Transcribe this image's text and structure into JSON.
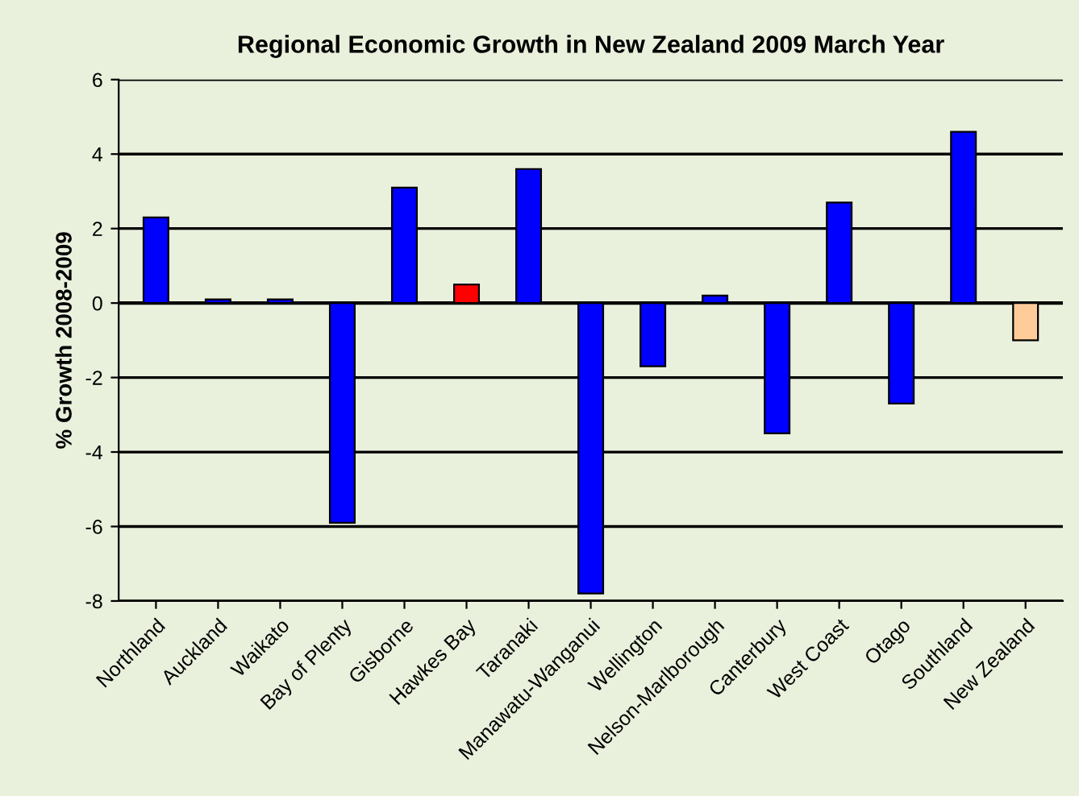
{
  "chart_data": {
    "type": "bar",
    "title": "Regional Economic Growth in New Zealand 2009 March Year",
    "ylabel": "% Growth 2008-2009",
    "categories": [
      "Northland",
      "Auckland",
      "Waikato",
      "Bay of Plenty",
      "Gisborne",
      "Hawkes Bay",
      "Taranaki",
      "Manawatu-Wanganui",
      "Wellington",
      "Nelson-Marlborough",
      "Canterbury",
      "West Coast",
      "Otago",
      "Southland",
      "New Zealand"
    ],
    "values": [
      2.3,
      0.1,
      0.1,
      -5.9,
      3.1,
      0.5,
      3.6,
      -7.8,
      -1.7,
      0.2,
      -3.5,
      2.7,
      -2.7,
      4.6,
      -1.0
    ],
    "colors": [
      "#0000ff",
      "#0000ff",
      "#0000ff",
      "#0000ff",
      "#0000ff",
      "#ff0000",
      "#0000ff",
      "#0000ff",
      "#0000ff",
      "#0000ff",
      "#0000ff",
      "#0000ff",
      "#0000ff",
      "#0000ff",
      "#ffcc99"
    ],
    "ylim": [
      -8,
      6
    ],
    "yticks": [
      -8,
      -6,
      -4,
      -2,
      0,
      2,
      4,
      6
    ],
    "grid": "y"
  }
}
